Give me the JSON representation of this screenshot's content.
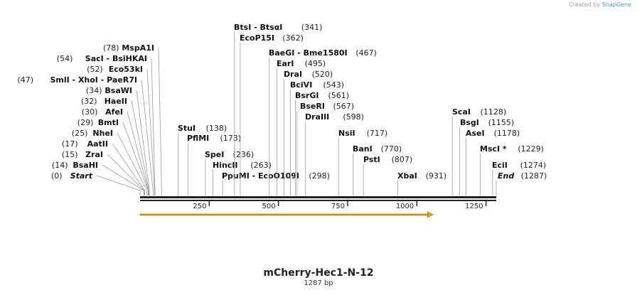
{
  "credit": {
    "prefix": "Created by",
    "brand": "SnapGene"
  },
  "plasmid": {
    "name": "mCherry-Hec1-N-12",
    "length_label": "1287 bp",
    "length": 1287
  },
  "axis": {
    "ticks": [
      250,
      500,
      750,
      1000,
      1250
    ]
  },
  "feature": {
    "start": 0,
    "end": 1059,
    "color": "#f4a300",
    "direction": "forward"
  },
  "sites": [
    {
      "name": "Start",
      "pos": 0,
      "label": "(0)",
      "italic": true
    },
    {
      "name": "BsaHI",
      "pos": 14,
      "label": "(14)"
    },
    {
      "name": "ZraI",
      "pos": 15,
      "label": "(15)"
    },
    {
      "name": "AatII",
      "pos": 17,
      "label": "(17)"
    },
    {
      "name": "NheI",
      "pos": 25,
      "label": "(25)"
    },
    {
      "name": "BmtI",
      "pos": 29,
      "label": "(29)"
    },
    {
      "name": "AfeI",
      "pos": 30,
      "label": "(30)"
    },
    {
      "name": "HaeII",
      "pos": 32,
      "label": "(32)"
    },
    {
      "name": "BsaWI",
      "pos": 34,
      "label": "(34)"
    },
    {
      "name": "SmlI - XhoI - PaeR7I",
      "pos": 47,
      "label": "(47)"
    },
    {
      "name": "Eco53kI",
      "pos": 52,
      "label": "(52)"
    },
    {
      "name": "SacI - BsiHKAI",
      "pos": 54,
      "label": "(54)"
    },
    {
      "name": "MspA1I",
      "pos": 78,
      "label": "(78)"
    },
    {
      "name": "StuI",
      "pos": 138,
      "label": "(138)"
    },
    {
      "name": "PflMI",
      "pos": 173,
      "label": "(173)"
    },
    {
      "name": "SpeI",
      "pos": 236,
      "label": "(236)"
    },
    {
      "name": "HincII",
      "pos": 263,
      "label": "(263)"
    },
    {
      "name": "PpuMI - EcoO109I",
      "pos": 298,
      "label": "(298)"
    },
    {
      "name": "BtsI - BtsαI",
      "pos": 341,
      "label": "(341)"
    },
    {
      "name": "EcoP15I",
      "pos": 362,
      "label": "(362)"
    },
    {
      "name": "BaeGI - Bme1580I",
      "pos": 467,
      "label": "(467)"
    },
    {
      "name": "EarI",
      "pos": 495,
      "label": "(495)"
    },
    {
      "name": "DraI",
      "pos": 520,
      "label": "(520)"
    },
    {
      "name": "BciVI",
      "pos": 543,
      "label": "(543)"
    },
    {
      "name": "BsrGI",
      "pos": 561,
      "label": "(561)"
    },
    {
      "name": "BseRI",
      "pos": 567,
      "label": "(567)"
    },
    {
      "name": "DraIII",
      "pos": 598,
      "label": "(598)"
    },
    {
      "name": "NsiI",
      "pos": 717,
      "label": "(717)"
    },
    {
      "name": "BanI",
      "pos": 770,
      "label": "(770)"
    },
    {
      "name": "PstI",
      "pos": 807,
      "label": "(807)"
    },
    {
      "name": "XbaI",
      "pos": 931,
      "label": "(931)"
    },
    {
      "name": "ScaI",
      "pos": 1128,
      "label": "(1128)"
    },
    {
      "name": "BsgI",
      "pos": 1155,
      "label": "(1155)"
    },
    {
      "name": "AseI",
      "pos": 1178,
      "label": "(1178)"
    },
    {
      "name": "MscI *",
      "pos": 1229,
      "label": "(1229)"
    },
    {
      "name": "EciI",
      "pos": 1274,
      "label": "(1274)"
    },
    {
      "name": "End",
      "pos": 1287,
      "label": "(1287)",
      "italic": true
    }
  ]
}
